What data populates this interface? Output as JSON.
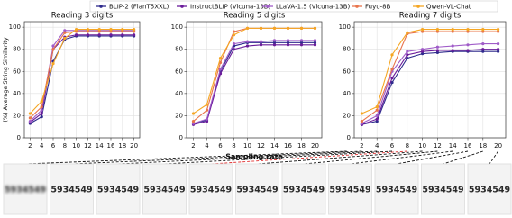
{
  "chart_data": [
    {
      "type": "line",
      "title": "Reading 3 digits",
      "ylabel": "(%) Average String Similarity",
      "x": [
        2,
        4,
        6,
        8,
        10,
        12,
        14,
        16,
        18,
        20
      ],
      "xlim": [
        1,
        21
      ],
      "xticks": [
        2,
        4,
        6,
        8,
        10,
        12,
        14,
        16,
        18,
        20
      ],
      "ylim": [
        0,
        105
      ],
      "yticks": [
        0,
        20,
        40,
        60,
        80,
        100
      ],
      "grid": true,
      "series": [
        {
          "name": "BLIP-2 (FlanT5XXL)",
          "color": "#2e2a8c",
          "values": [
            13,
            19,
            69,
            89,
            92,
            92,
            92,
            92,
            92,
            92
          ]
        },
        {
          "name": "InstructBLIP (Vicuna-13B)",
          "color": "#6a1b9a",
          "values": [
            14,
            22,
            80,
            91,
            93,
            93,
            93,
            93,
            93,
            93
          ]
        },
        {
          "name": "LLaVA-1.5 (Vicuna-13B)",
          "color": "#a05cc8",
          "values": [
            15,
            25,
            83,
            97,
            97,
            97,
            97,
            97,
            97,
            97
          ]
        },
        {
          "name": "Fuyu-8B",
          "color": "#e8744b",
          "values": [
            18,
            28,
            80,
            95,
            96,
            96,
            96,
            96,
            96,
            96
          ]
        },
        {
          "name": "Qwen-VL-Chat",
          "color": "#f5a623",
          "values": [
            22,
            33,
            67,
            90,
            98,
            98,
            98,
            98,
            98,
            98
          ]
        }
      ]
    },
    {
      "type": "line",
      "title": "Reading 5 digits",
      "xlabel": "Sampling rate",
      "x": [
        2,
        4,
        6,
        8,
        10,
        12,
        14,
        16,
        18,
        20
      ],
      "xlim": [
        1,
        21
      ],
      "xticks": [
        2,
        4,
        6,
        8,
        10,
        12,
        14,
        16,
        18,
        20
      ],
      "ylim": [
        0,
        105
      ],
      "yticks": [
        0,
        20,
        40,
        60,
        80,
        100
      ],
      "grid": true,
      "series": [
        {
          "values": [
            13,
            16,
            60,
            83,
            86,
            86,
            86,
            86,
            86,
            86
          ]
        },
        {
          "values": [
            12,
            15,
            58,
            80,
            83,
            84,
            84,
            84,
            84,
            84
          ]
        },
        {
          "values": [
            13,
            17,
            62,
            85,
            87,
            87,
            88,
            88,
            88,
            88
          ]
        },
        {
          "values": [
            15,
            25,
            68,
            96,
            99,
            99,
            99,
            99,
            99,
            99
          ]
        },
        {
          "values": [
            22,
            30,
            72,
            93,
            99,
            99,
            99,
            99,
            99,
            99
          ]
        }
      ]
    },
    {
      "type": "line",
      "title": "Reading 7 digits",
      "x": [
        2,
        4,
        6,
        8,
        10,
        12,
        14,
        16,
        18,
        20
      ],
      "xlim": [
        1,
        21
      ],
      "xticks": [
        2,
        4,
        6,
        8,
        10,
        12,
        14,
        16,
        18,
        20
      ],
      "ylim": [
        0,
        105
      ],
      "yticks": [
        0,
        20,
        40,
        60,
        80,
        100
      ],
      "grid": true,
      "series": [
        {
          "values": [
            12,
            15,
            50,
            72,
            76,
            77,
            78,
            78,
            78,
            78
          ]
        },
        {
          "values": [
            12,
            17,
            54,
            75,
            78,
            79,
            79,
            79,
            80,
            80
          ]
        },
        {
          "values": [
            13,
            20,
            60,
            78,
            80,
            82,
            83,
            84,
            85,
            85
          ]
        },
        {
          "values": [
            15,
            25,
            62,
            94,
            96,
            96,
            96,
            96,
            96,
            96
          ]
        },
        {
          "values": [
            22,
            28,
            75,
            95,
            98,
            98,
            98,
            98,
            98,
            98
          ]
        }
      ]
    }
  ],
  "images": [
    "5934549",
    "5934549",
    "5934549",
    "5934549",
    "5934549",
    "5934549",
    "5934549",
    "5934549",
    "5934549",
    "5934549",
    "5934549"
  ]
}
